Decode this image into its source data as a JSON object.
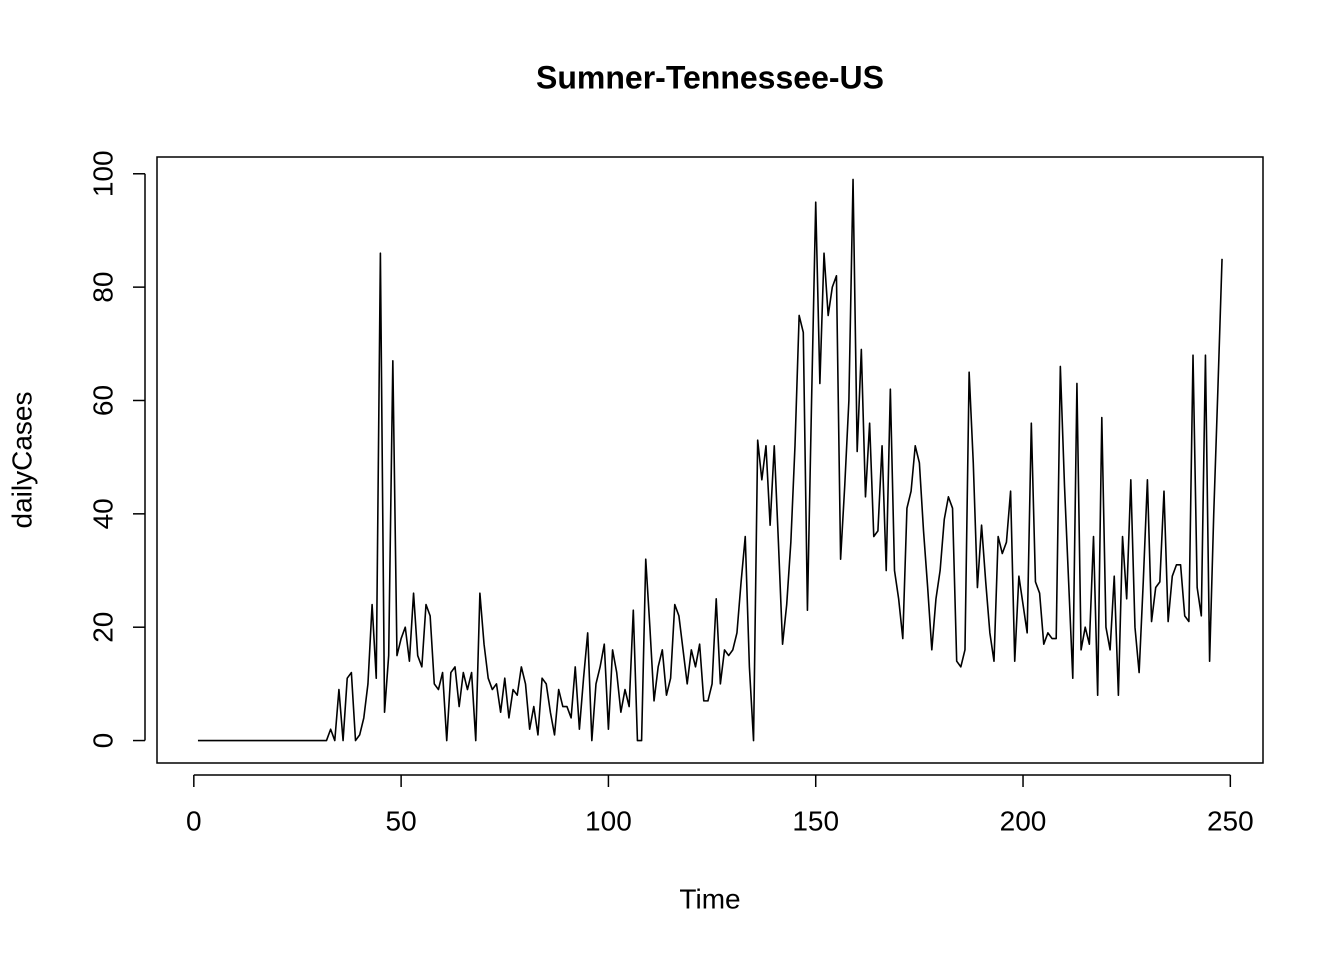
{
  "chart_data": {
    "type": "line",
    "title": "Sumner-Tennessee-US",
    "x_label": "Time",
    "y_label": "dailyCases",
    "x": [
      1,
      2,
      3,
      4,
      5,
      6,
      7,
      8,
      9,
      10,
      11,
      12,
      13,
      14,
      15,
      16,
      17,
      18,
      19,
      20,
      21,
      22,
      23,
      24,
      25,
      26,
      27,
      28,
      29,
      30,
      31,
      32,
      33,
      34,
      35,
      36,
      37,
      38,
      39,
      40,
      41,
      42,
      43,
      44,
      45,
      46,
      47,
      48,
      49,
      50,
      51,
      52,
      53,
      54,
      55,
      56,
      57,
      58,
      59,
      60,
      61,
      62,
      63,
      64,
      65,
      66,
      67,
      68,
      69,
      70,
      71,
      72,
      73,
      74,
      75,
      76,
      77,
      78,
      79,
      80,
      81,
      82,
      83,
      84,
      85,
      86,
      87,
      88,
      89,
      90,
      91,
      92,
      93,
      94,
      95,
      96,
      97,
      98,
      99,
      100,
      101,
      102,
      103,
      104,
      105,
      106,
      107,
      108,
      109,
      110,
      111,
      112,
      113,
      114,
      115,
      116,
      117,
      118,
      119,
      120,
      121,
      122,
      123,
      124,
      125,
      126,
      127,
      128,
      129,
      130,
      131,
      132,
      133,
      134,
      135,
      136,
      137,
      138,
      139,
      140,
      141,
      142,
      143,
      144,
      145,
      146,
      147,
      148,
      149,
      150,
      151,
      152,
      153,
      154,
      155,
      156,
      157,
      158,
      159,
      160,
      161,
      162,
      163,
      164,
      165,
      166,
      167,
      168,
      169,
      170,
      171,
      172,
      173,
      174,
      175,
      176,
      177,
      178,
      179,
      180,
      181,
      182,
      183,
      184,
      185,
      186,
      187,
      188,
      189,
      190,
      191,
      192,
      193,
      194,
      195,
      196,
      197,
      198,
      199,
      200,
      201,
      202,
      203,
      204,
      205,
      206,
      207,
      208,
      209,
      210,
      211,
      212,
      213,
      214,
      215,
      216,
      217,
      218,
      219,
      220,
      221,
      222,
      223,
      224,
      225,
      226,
      227,
      228,
      229,
      230,
      231,
      232,
      233,
      234,
      235,
      236,
      237,
      238,
      239,
      240,
      241,
      242,
      243,
      244,
      245,
      246,
      247,
      248
    ],
    "series": [
      {
        "name": "dailyCases",
        "color": "#000000",
        "values": [
          0,
          0,
          0,
          0,
          0,
          0,
          0,
          0,
          0,
          0,
          0,
          0,
          0,
          0,
          0,
          0,
          0,
          0,
          0,
          0,
          0,
          0,
          0,
          0,
          0,
          0,
          0,
          0,
          0,
          0,
          0,
          0,
          2,
          0,
          9,
          0,
          11,
          12,
          0,
          1,
          4,
          10,
          24,
          11,
          86,
          5,
          15,
          67,
          15,
          18,
          20,
          14,
          26,
          15,
          13,
          24,
          22,
          10,
          9,
          12,
          0,
          12,
          13,
          6,
          12,
          9,
          12,
          0,
          26,
          17,
          11,
          9,
          10,
          5,
          11,
          4,
          9,
          8,
          13,
          10,
          2,
          6,
          1,
          11,
          10,
          5,
          1,
          9,
          6,
          6,
          4,
          13,
          2,
          11,
          19,
          0,
          10,
          13,
          17,
          2,
          16,
          12,
          5,
          9,
          6,
          23,
          0,
          0,
          32,
          20,
          7,
          13,
          16,
          8,
          11,
          24,
          22,
          16,
          10,
          16,
          13,
          17,
          7,
          7,
          10,
          25,
          10,
          16,
          15,
          16,
          19,
          28,
          36,
          13,
          0,
          53,
          46,
          52,
          38,
          52,
          35,
          17,
          24,
          35,
          52,
          75,
          72,
          23,
          60,
          95,
          63,
          86,
          75,
          80,
          82,
          32,
          45,
          60,
          99,
          51,
          69,
          43,
          56,
          36,
          37,
          52,
          30,
          62,
          30,
          25,
          18,
          41,
          44,
          52,
          49,
          37,
          27,
          16,
          25,
          30,
          39,
          43,
          41,
          14,
          13,
          16,
          65,
          49,
          27,
          38,
          28,
          19,
          14,
          36,
          33,
          35,
          44,
          14,
          29,
          24,
          19,
          56,
          28,
          26,
          17,
          19,
          18,
          18,
          66,
          45,
          28,
          11,
          63,
          16,
          20,
          17,
          36,
          8,
          57,
          20,
          16,
          29,
          8,
          36,
          25,
          46,
          20,
          12,
          28,
          46,
          21,
          27,
          28,
          44,
          21,
          29,
          31,
          31,
          22,
          21,
          68,
          27,
          22,
          68,
          14,
          40,
          62,
          85
        ]
      }
    ],
    "xlim": [
      -8.88,
      257.88
    ],
    "ylim": [
      -3.96,
      102.96
    ],
    "xticks": [
      0,
      50,
      100,
      150,
      200,
      250
    ],
    "yticks": [
      0,
      20,
      40,
      60,
      80,
      100
    ]
  }
}
